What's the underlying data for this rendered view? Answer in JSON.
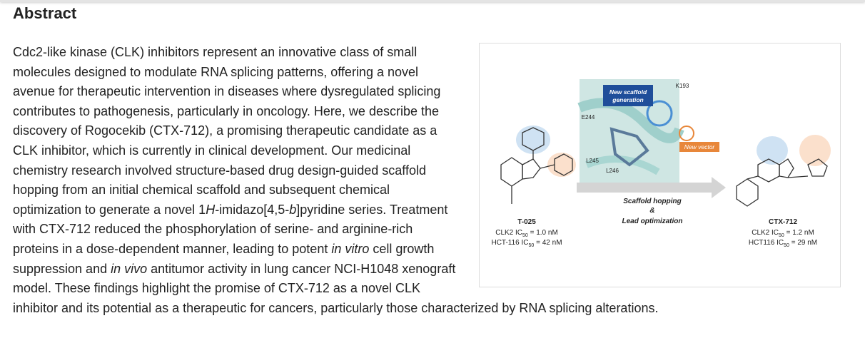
{
  "header": {
    "title": "Abstract"
  },
  "abstract": {
    "segments": [
      {
        "text": "Cdc2-like kinase (CLK) inhibitors represent an innovative class of small molecules designed to modulate RNA splicing patterns, offering a novel avenue for therapeutic intervention in diseases where dysregulated splicing contributes to pathogenesis, particularly in oncology. Here, we describe the discovery of Rogocekib (CTX-712), a promising therapeutic candidate as a CLK inhibitor, which is currently in clinical development. Our medicinal chemistry research involved structure-based drug design-guided scaffold hopping from an initial chemical scaffold and subsequent chemical optimization to generate a novel 1",
        "italic": false
      },
      {
        "text": "H",
        "italic": true
      },
      {
        "text": "-imidazo[4,5-",
        "italic": false
      },
      {
        "text": "b",
        "italic": true
      },
      {
        "text": "]pyridine series. Treatment with CTX-712 reduced the phosphorylation of serine- and arginine-rich proteins in a dose-dependent manner, leading to potent ",
        "italic": false
      },
      {
        "text": "in vitro",
        "italic": true
      },
      {
        "text": " cell growth suppression and ",
        "italic": false
      },
      {
        "text": "in vivo",
        "italic": true
      },
      {
        "text": " antitumor activity in lung cancer NCI-H1048 xenograft model. These findings highlight the promise of CTX-712 as a novel CLK inhibitor and its potential as a therapeutic for cancers, particularly those characterized by RNA splicing alterations.",
        "italic": false
      }
    ]
  },
  "figure": {
    "callout_scaffold": [
      "New scaffold",
      "generation"
    ],
    "callout_vector": "New vector",
    "residues": [
      "K193",
      "E244",
      "L245",
      "L246"
    ],
    "arrow_label": [
      "Scaffold hopping",
      "&",
      "Lead optimization"
    ],
    "left": {
      "name": "T-025",
      "ic1": {
        "pre": "CLK2 IC",
        "sub": "50",
        "post": " = 1.0 nM"
      },
      "ic2": {
        "pre": "HCT-116 IC",
        "sub": "50",
        "post": " = 42 nM"
      }
    },
    "right": {
      "name": "CTX-712",
      "ic1": {
        "pre": "CLK2 IC",
        "sub": "50",
        "post": " = 1.2 nM"
      },
      "ic2": {
        "pre": "HCT116 IC",
        "sub": "50",
        "post": " = 29 nM"
      }
    }
  }
}
